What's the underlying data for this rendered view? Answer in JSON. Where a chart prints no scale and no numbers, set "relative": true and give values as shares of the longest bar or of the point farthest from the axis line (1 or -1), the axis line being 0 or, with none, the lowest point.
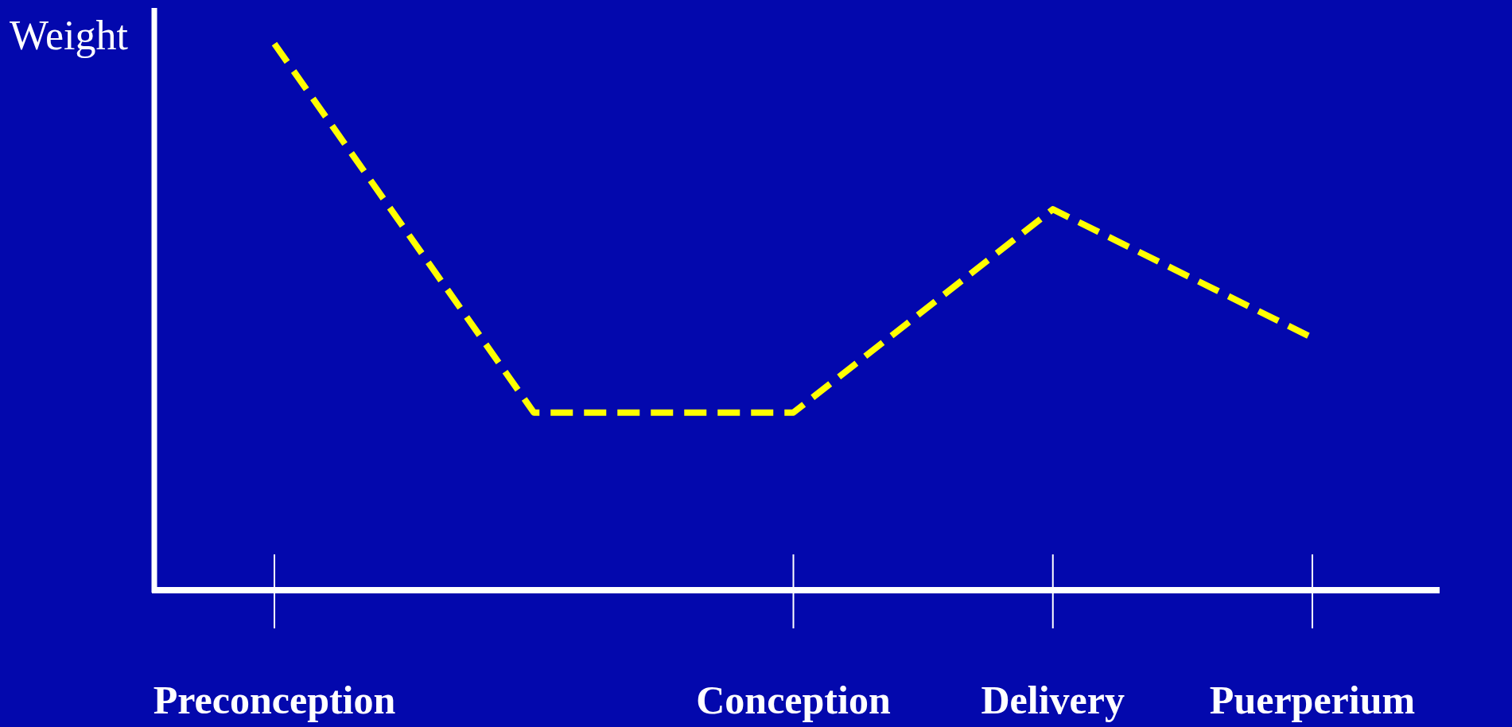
{
  "chart_data": {
    "type": "line",
    "relative": true,
    "ylabel": "Weight",
    "categories": [
      "Preconception",
      null,
      "Conception",
      "Delivery",
      "Puerperium"
    ],
    "series": [
      {
        "color": "#ffff00",
        "values": [
          1,
          0.325,
          0.325,
          0.697,
          0.462
        ]
      }
    ],
    "line_style": "dashed",
    "marker": "none",
    "grid": false,
    "legend": false
  }
}
